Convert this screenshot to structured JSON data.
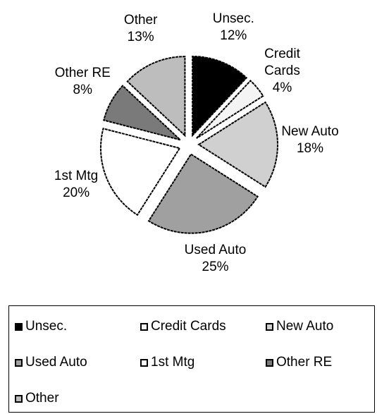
{
  "chart_data": {
    "type": "pie",
    "categories": [
      "Unsec.",
      "Credit Cards",
      "New Auto",
      "Used Auto",
      "1st Mtg",
      "Other RE",
      "Other"
    ],
    "values": [
      12,
      4,
      18,
      25,
      20,
      8,
      13
    ],
    "value_labels": [
      "12%",
      "4%",
      "18%",
      "25%",
      "20%",
      "8%",
      "13%"
    ],
    "colors": [
      "#000000",
      "#f4f4f4",
      "#d0d0d0",
      "#a0a0a0",
      "#ffffff",
      "#7a7a7a",
      "#bdbdbd"
    ]
  }
}
